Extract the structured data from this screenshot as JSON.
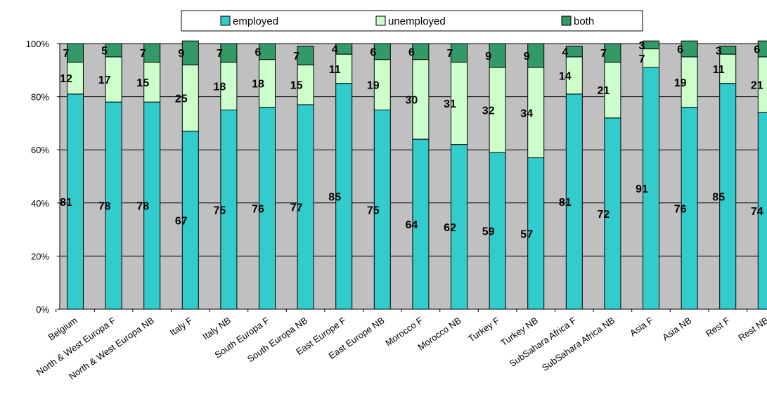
{
  "chart_data": {
    "type": "bar",
    "stacked": true,
    "percent": true,
    "categories": [
      "Belgium",
      "North & West Europa F",
      "North & West Europa NB",
      "Italy F",
      "Italy NB",
      "South Europa F",
      "South Europa NB",
      "East Europe F",
      "East Europe NB",
      "Morocco F",
      "Morocco NB",
      "Turkey F",
      "Turkey NB",
      "SubSahara Africa F",
      "SubSahara Africa NB",
      "Asia F",
      "Asia NB",
      "Rest F",
      "Rest NB"
    ],
    "series": [
      {
        "name": "employed",
        "color": "#33CCCC",
        "values": [
          81,
          78,
          78,
          67,
          75,
          76,
          77,
          85,
          75,
          64,
          62,
          59,
          57,
          81,
          72,
          91,
          76,
          85,
          74
        ]
      },
      {
        "name": "unemployed",
        "color": "#CCFFCC",
        "values": [
          12,
          17,
          15,
          25,
          18,
          18,
          15,
          11,
          19,
          30,
          31,
          32,
          34,
          14,
          21,
          7,
          19,
          11,
          21
        ]
      },
      {
        "name": "both",
        "color": "#339966",
        "values": [
          7,
          5,
          7,
          9,
          7,
          6,
          7,
          4,
          6,
          6,
          7,
          9,
          9,
          4,
          7,
          3,
          6,
          3,
          6
        ]
      }
    ],
    "yticks": [
      "0%",
      "20%",
      "40%",
      "60%",
      "80%",
      "100%"
    ],
    "ylim": [
      0,
      100
    ],
    "grid": true,
    "legend": "top",
    "plot_background": "#C0C0C0"
  }
}
